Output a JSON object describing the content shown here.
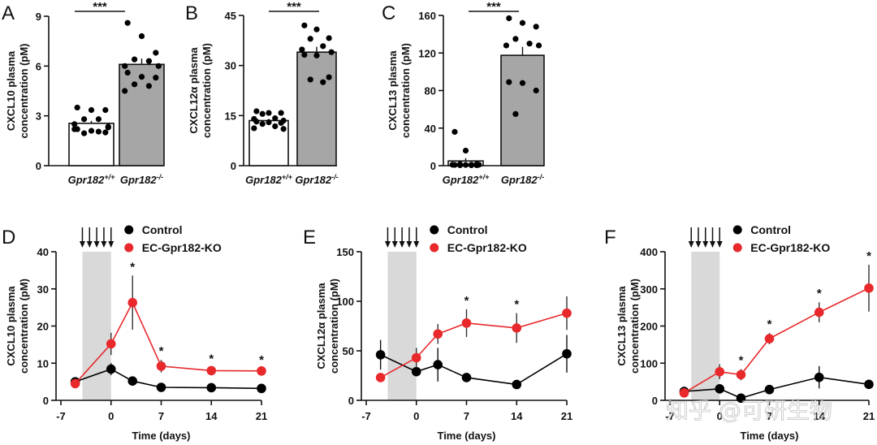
{
  "watermark": "知乎 @可研生物",
  "chart_data": [
    {
      "panel": "A",
      "type": "bar",
      "title": "",
      "xlabel": "",
      "ylabel": "CXCL10 plasma concentration (pM)",
      "ylabel_lines": [
        "CXCL10 plasma",
        "concentration (pM)"
      ],
      "ylim": [
        0,
        9
      ],
      "yticks": [
        0,
        3,
        6,
        9
      ],
      "categories": [
        "Gpr182+/+",
        "Gpr182-/-"
      ],
      "category_base": [
        "Gpr182",
        "Gpr182"
      ],
      "category_sup": [
        "+/+",
        "-/-"
      ],
      "values": [
        2.55,
        6.1
      ],
      "error": [
        0.15,
        0.35
      ],
      "bar_colors": [
        "#ffffff",
        "#a6a6a6"
      ],
      "points": [
        [
          3.5,
          3.35,
          3.35,
          2.8,
          2.8,
          2.5,
          2.3,
          2.2,
          2.1,
          2.0,
          1.95,
          2.05,
          2.2,
          2.35
        ],
        [
          8.6,
          7.8,
          6.8,
          6.4,
          6.3,
          6.0,
          6.0,
          5.6,
          5.35,
          5.3,
          4.9,
          4.8,
          4.5
        ]
      ],
      "significance": "***"
    },
    {
      "panel": "B",
      "type": "bar",
      "title": "",
      "xlabel": "",
      "ylabel": "CXCL12α plasma concentration (pM)",
      "ylabel_lines": [
        "CXCL12α plasma",
        "concentration (pM)"
      ],
      "ylim": [
        0,
        45
      ],
      "yticks": [
        0,
        15,
        30,
        45
      ],
      "categories": [
        "Gpr182+/+",
        "Gpr182-/-"
      ],
      "category_base": [
        "Gpr182",
        "Gpr182"
      ],
      "category_sup": [
        "+/+",
        "-/-"
      ],
      "values": [
        13.5,
        34.0
      ],
      "error": [
        0.5,
        1.6
      ],
      "bar_colors": [
        "#ffffff",
        "#a6a6a6"
      ],
      "points": [
        [
          16.3,
          15.8,
          15.8,
          15.5,
          14.2,
          14.0,
          13.5,
          13.2,
          13.0,
          12.8,
          12.5,
          11.8,
          11.2,
          11.0
        ],
        [
          42.0,
          40.8,
          38.2,
          38.0,
          35.8,
          34.8,
          34.0,
          33.2,
          33.0,
          26.5,
          25.8,
          25.0
        ]
      ],
      "significance": "***"
    },
    {
      "panel": "C",
      "type": "bar",
      "title": "",
      "xlabel": "",
      "ylabel": "CXCL13 plasma concentration (pM)",
      "ylabel_lines": [
        "CXCL13 plasma",
        "concentration (pM)"
      ],
      "ylim": [
        0,
        160
      ],
      "yticks": [
        0,
        40,
        80,
        120,
        160
      ],
      "categories": [
        "Gpr182+/+",
        "Gpr182-/-"
      ],
      "category_base": [
        "Gpr182",
        "Gpr182"
      ],
      "category_sup": [
        "+/+",
        "-/-"
      ],
      "values": [
        5.0,
        117.5
      ],
      "error": [
        3.0,
        9.0
      ],
      "bar_colors": [
        "#ffffff",
        "#a6a6a6"
      ],
      "points": [
        [
          36,
          16,
          1.5,
          1.5,
          1.0,
          1.0,
          1.0,
          0.8,
          0.8,
          0.5,
          0.5,
          0.5
        ],
        [
          157,
          152,
          148,
          135,
          130,
          128,
          128,
          89,
          88,
          80,
          55
        ]
      ],
      "significance": "***"
    },
    {
      "panel": "D",
      "type": "line",
      "title": "",
      "xlabel": "Time (days)",
      "ylabel": "CXCL10 plasma concentration (pM)",
      "ylabel_lines": [
        "CXCL10 plasma",
        "concentration (pM)"
      ],
      "xlim": [
        -7,
        21
      ],
      "xticks": [
        -7,
        0,
        7,
        14,
        21
      ],
      "ylim": [
        0,
        40
      ],
      "yticks": [
        0,
        10,
        20,
        30,
        40
      ],
      "shaded_region": [
        -4,
        0
      ],
      "arrows_at": [
        -4,
        -3,
        -2,
        -1,
        0
      ],
      "legend_position": "top",
      "series": [
        {
          "name": "Control",
          "color": "#000000",
          "x": [
            -5,
            0,
            3,
            7,
            14,
            21
          ],
          "y": [
            5.0,
            8.4,
            5.2,
            3.5,
            3.4,
            3.2
          ],
          "error": [
            0.6,
            1.6,
            0.5,
            0.4,
            0.3,
            0.3
          ]
        },
        {
          "name": "EC-Gpr182-KO",
          "color": "#e8282b",
          "x": [
            -5,
            0,
            3,
            7,
            14,
            21
          ],
          "y": [
            4.5,
            15.2,
            26.3,
            9.2,
            8.0,
            7.9
          ],
          "error": [
            0.4,
            3.0,
            7.3,
            1.7,
            0.9,
            0.6
          ]
        }
      ],
      "significance": [
        {
          "x": 3,
          "label": "*"
        },
        {
          "x": 7,
          "label": "*"
        },
        {
          "x": 14,
          "label": "*"
        },
        {
          "x": 21,
          "label": "*"
        }
      ]
    },
    {
      "panel": "E",
      "type": "line",
      "title": "",
      "xlabel": "Time (days)",
      "ylabel": "CXCL12α plasma concentration (pM)",
      "ylabel_lines": [
        "CXCL12α plasma",
        "concentration (pM)"
      ],
      "xlim": [
        -7,
        21
      ],
      "xticks": [
        -7,
        0,
        7,
        14,
        21
      ],
      "ylim": [
        0,
        150
      ],
      "yticks": [
        0,
        50,
        100,
        150
      ],
      "shaded_region": [
        -4,
        0
      ],
      "arrows_at": [
        -4,
        -3,
        -2,
        -1,
        0
      ],
      "legend_position": "top",
      "series": [
        {
          "name": "Control",
          "color": "#000000",
          "x": [
            -5,
            0,
            3,
            7,
            14,
            21
          ],
          "y": [
            46,
            29,
            36,
            23,
            16,
            47
          ],
          "error": [
            15,
            4,
            17,
            3,
            2,
            19
          ]
        },
        {
          "name": "EC-Gpr182-KO",
          "color": "#e8282b",
          "x": [
            -5,
            0,
            3,
            7,
            14,
            21
          ],
          "y": [
            23,
            43,
            67,
            78,
            73,
            88
          ],
          "error": [
            2,
            10,
            10,
            14,
            15,
            17
          ]
        }
      ],
      "significance": [
        {
          "x": 7,
          "label": "*"
        },
        {
          "x": 14,
          "label": "*"
        }
      ]
    },
    {
      "panel": "F",
      "type": "line",
      "title": "",
      "xlabel": "Time (days)",
      "ylabel": "CXCL13 plasma concentration (pM)",
      "ylabel_lines": [
        "CXCL13 plasma",
        "concentration (pM)"
      ],
      "xlim": [
        -7,
        21
      ],
      "xticks": [
        -7,
        0,
        7,
        14,
        21
      ],
      "ylim": [
        0,
        400
      ],
      "yticks": [
        0,
        100,
        200,
        300,
        400
      ],
      "shaded_region": [
        -4,
        0
      ],
      "arrows_at": [
        -4,
        -3,
        -2,
        -1,
        0
      ],
      "legend_position": "top",
      "series": [
        {
          "name": "Control",
          "color": "#000000",
          "x": [
            -5,
            0,
            3,
            7,
            14,
            21
          ],
          "y": [
            24,
            31,
            6,
            29,
            62,
            43
          ],
          "error": [
            4,
            6,
            3,
            4,
            30,
            5
          ]
        },
        {
          "name": "EC-Gpr182-KO",
          "color": "#e8282b",
          "x": [
            -5,
            0,
            3,
            7,
            14,
            21
          ],
          "y": [
            20,
            77,
            69,
            166,
            237,
            302
          ],
          "error": [
            3,
            20,
            15,
            15,
            27,
            63
          ]
        }
      ],
      "significance": [
        {
          "x": 3,
          "label": "*"
        },
        {
          "x": 7,
          "label": "*"
        },
        {
          "x": 14,
          "label": "*"
        },
        {
          "x": 21,
          "label": "*"
        }
      ]
    }
  ]
}
